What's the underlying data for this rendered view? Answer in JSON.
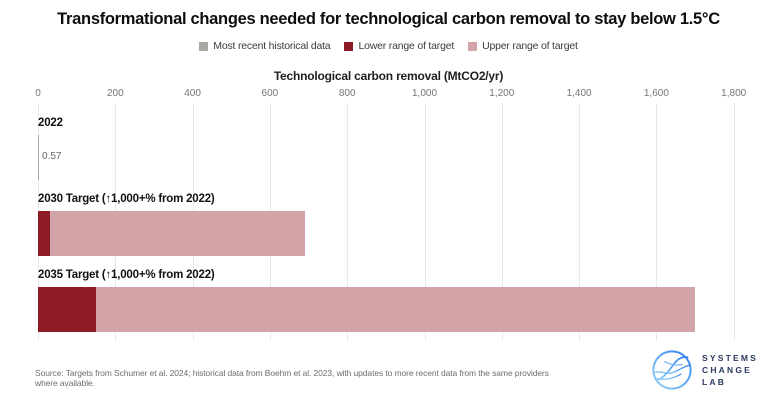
{
  "title": "Transformational changes needed for technological carbon removal to stay below 1.5°C",
  "legend": {
    "items": [
      {
        "name": "most-recent-historical-data",
        "label": "Most recent historical data",
        "color": "#A9A9A3"
      },
      {
        "name": "lower-range-of-target",
        "label": "Lower range of target",
        "color": "#8E1C27"
      },
      {
        "name": "upper-range-of-target",
        "label": "Upper range of target",
        "color": "#D2A4A7"
      }
    ]
  },
  "chart_data": {
    "type": "bar",
    "orientation": "horizontal",
    "xlabel": "Technological carbon removal (MtCO2/yr)",
    "xlim": [
      0,
      1800
    ],
    "x_tick_values": [
      0,
      200,
      400,
      600,
      800,
      1000,
      1200,
      1400,
      1600,
      1800
    ],
    "x_tick_labels": [
      "0",
      "200",
      "400",
      "600",
      "800",
      "1,000",
      "1,200",
      "1,400",
      "1,600",
      "1,800"
    ],
    "grid": true,
    "legend_position": "top",
    "rows": [
      {
        "label": "2022",
        "type": "historical",
        "value": 0.57,
        "value_label": "0.57",
        "color": "#A9A9A3"
      },
      {
        "label": "2030 Target (↑1,000+% from 2022)",
        "type": "target",
        "lower": 30,
        "upper": 690,
        "lower_color": "#8E1C27",
        "upper_color": "#D2A4A7"
      },
      {
        "label": "2035 Target (↑1,000+% from 2022)",
        "type": "target",
        "lower": 150,
        "upper": 1700,
        "lower_color": "#8E1C27",
        "upper_color": "#D2A4A7"
      }
    ]
  },
  "source": "Source: Targets from Schumer et al. 2024; historical data from Boehm et al. 2023, with updates to more recent data from the same providers where available.",
  "logo": {
    "text": "SYSTEMS\nCHANGE\nLAB"
  },
  "colors": {
    "historical": "#A9A9A3",
    "lower_target": "#8E1C27",
    "upper_target": "#D2A4A7",
    "gridline": "#e7e7e7",
    "tick_text": "#757575",
    "logo_navy": "#2b3a5e",
    "logo_blue_light": "#8ed0f8",
    "logo_blue_dark": "#2e7ef0"
  }
}
